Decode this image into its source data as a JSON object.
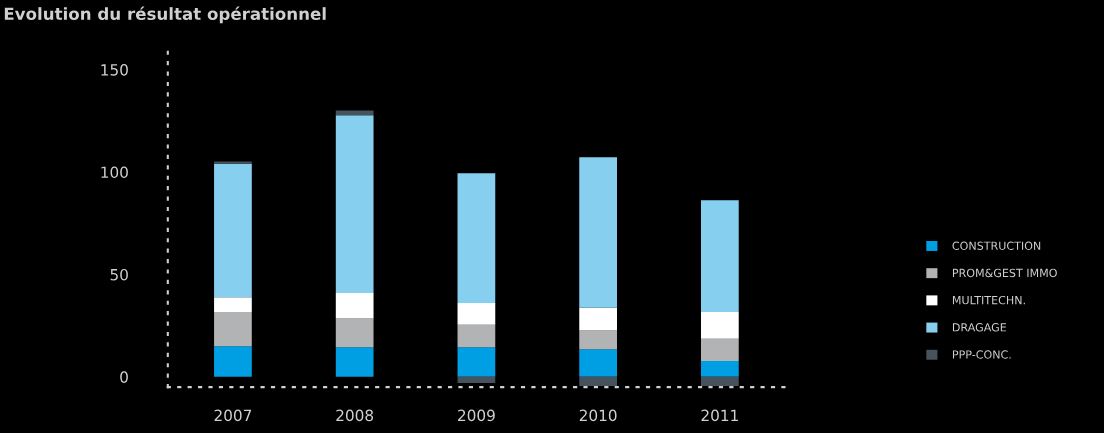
{
  "chart_data": {
    "type": "bar",
    "title": "Evolution du résultat opérationnel",
    "stacked": true,
    "categories": [
      "2007",
      "2008",
      "2009",
      "2010",
      "2011"
    ],
    "series": [
      {
        "name": "CONSTRUCTION",
        "color": "#009fe3",
        "values": [
          15.0,
          14.5,
          14.5,
          13.5,
          7.7
        ]
      },
      {
        "name": "PROM&GEST IMMO",
        "color": "#b2b3b5",
        "values": [
          16.7,
          14.0,
          11.0,
          9.1,
          10.9
        ]
      },
      {
        "name": "MULTITECHN.",
        "color": "#ffffff",
        "values": [
          7.2,
          12.5,
          10.6,
          11.1,
          13.1
        ]
      },
      {
        "name": "DRAGAGE",
        "color": "#87cfef",
        "values": [
          65.2,
          86.7,
          63.3,
          73.5,
          54.5
        ]
      },
      {
        "name": "PPP-CONC.",
        "color": "#46525c",
        "values": [
          1.1,
          2.3,
          -3.0,
          -4.5,
          -4.5
        ]
      }
    ],
    "ylim": [
      -5,
      162
    ],
    "yticks": [
      0,
      50,
      100,
      150
    ],
    "grid": false,
    "legend": "right"
  }
}
